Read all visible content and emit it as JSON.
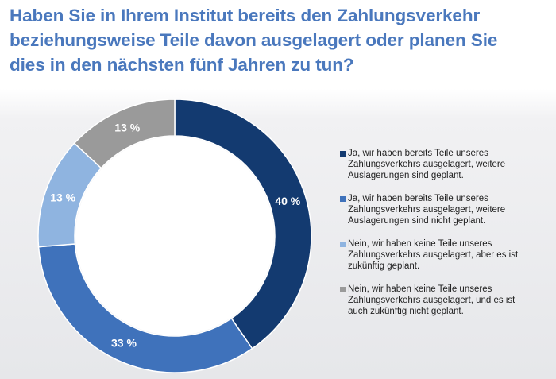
{
  "title_lines": [
    "Haben Sie in Ihrem Institut bereits den Zahlungsverkehr",
    "beziehungsweise Teile davon ausgelagert oder planen Sie",
    "dies in den nächsten fünf Jahren zu tun?"
  ],
  "colors": {
    "title": "#4a78bd",
    "dark_blue": "#133a70",
    "medium_blue": "#3f72bb",
    "light_blue": "#8fb4e0",
    "gray": "#9a9a9a"
  },
  "chart_data": {
    "type": "pie",
    "variant": "donut",
    "title": "Haben Sie in Ihrem Institut bereits den Zahlungsverkehr beziehungsweise Teile davon ausgelagert oder planen Sie dies in den nächsten fünf Jahren zu tun?",
    "legend_position": "right",
    "start_angle_deg": 0,
    "direction": "clockwise",
    "slices": [
      {
        "value": 40,
        "label": "40 %",
        "color": "#133a70",
        "legend_lines": [
          "Ja, wir haben bereits Teile unseres",
          "Zahlungsverkehrs ausgelagert, weitere",
          "Auslagerungen sind geplant."
        ]
      },
      {
        "value": 33,
        "label": "33 %",
        "color": "#3f72bb",
        "legend_lines": [
          "Ja, wir haben bereits Teile unseres",
          "Zahlungsverkehrs ausgelagert, weitere",
          "Auslagerungen sind nicht geplant."
        ]
      },
      {
        "value": 13,
        "label": "13 %",
        "color": "#8fb4e0",
        "legend_lines": [
          "Nein, wir haben keine Teile unseres",
          "Zahlungsverkehrs ausgelagert, aber es ist",
          "zukünftig geplant."
        ]
      },
      {
        "value": 13,
        "label": "13 %",
        "color": "#9a9a9a",
        "legend_lines": [
          "Nein, wir haben keine Teile unseres",
          "Zahlungsverkehrs ausgelagert, und es ist",
          "auch zukünftig nicht geplant."
        ]
      }
    ]
  }
}
